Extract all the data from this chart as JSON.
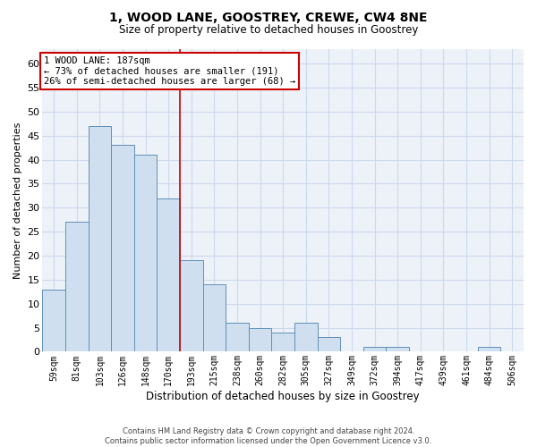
{
  "title_line1": "1, WOOD LANE, GOOSTREY, CREWE, CW4 8NE",
  "title_line2": "Size of property relative to detached houses in Goostrey",
  "xlabel": "Distribution of detached houses by size in Goostrey",
  "ylabel": "Number of detached properties",
  "categories": [
    "59sqm",
    "81sqm",
    "103sqm",
    "126sqm",
    "148sqm",
    "170sqm",
    "193sqm",
    "215sqm",
    "238sqm",
    "260sqm",
    "282sqm",
    "305sqm",
    "327sqm",
    "349sqm",
    "372sqm",
    "394sqm",
    "417sqm",
    "439sqm",
    "461sqm",
    "484sqm",
    "506sqm"
  ],
  "values": [
    13,
    27,
    47,
    43,
    41,
    32,
    19,
    14,
    6,
    5,
    4,
    6,
    3,
    0,
    1,
    1,
    0,
    0,
    0,
    1,
    0
  ],
  "bar_color": "#d0dff0",
  "bar_edge_color": "#6090b8",
  "bar_width": 1.0,
  "ylim": [
    0,
    63
  ],
  "yticks": [
    0,
    5,
    10,
    15,
    20,
    25,
    30,
    35,
    40,
    45,
    50,
    55,
    60
  ],
  "red_line_x": 5.5,
  "annotation_text": "1 WOOD LANE: 187sqm\n← 73% of detached houses are smaller (191)\n26% of semi-detached houses are larger (68) →",
  "annotation_box_color": "white",
  "annotation_box_edge_color": "#cc0000",
  "red_line_color": "#cc0000",
  "footnote": "Contains HM Land Registry data © Crown copyright and database right 2024.\nContains public sector information licensed under the Open Government Licence v3.0.",
  "grid_color": "#ccd8ec",
  "background_color": "#edf2f9"
}
